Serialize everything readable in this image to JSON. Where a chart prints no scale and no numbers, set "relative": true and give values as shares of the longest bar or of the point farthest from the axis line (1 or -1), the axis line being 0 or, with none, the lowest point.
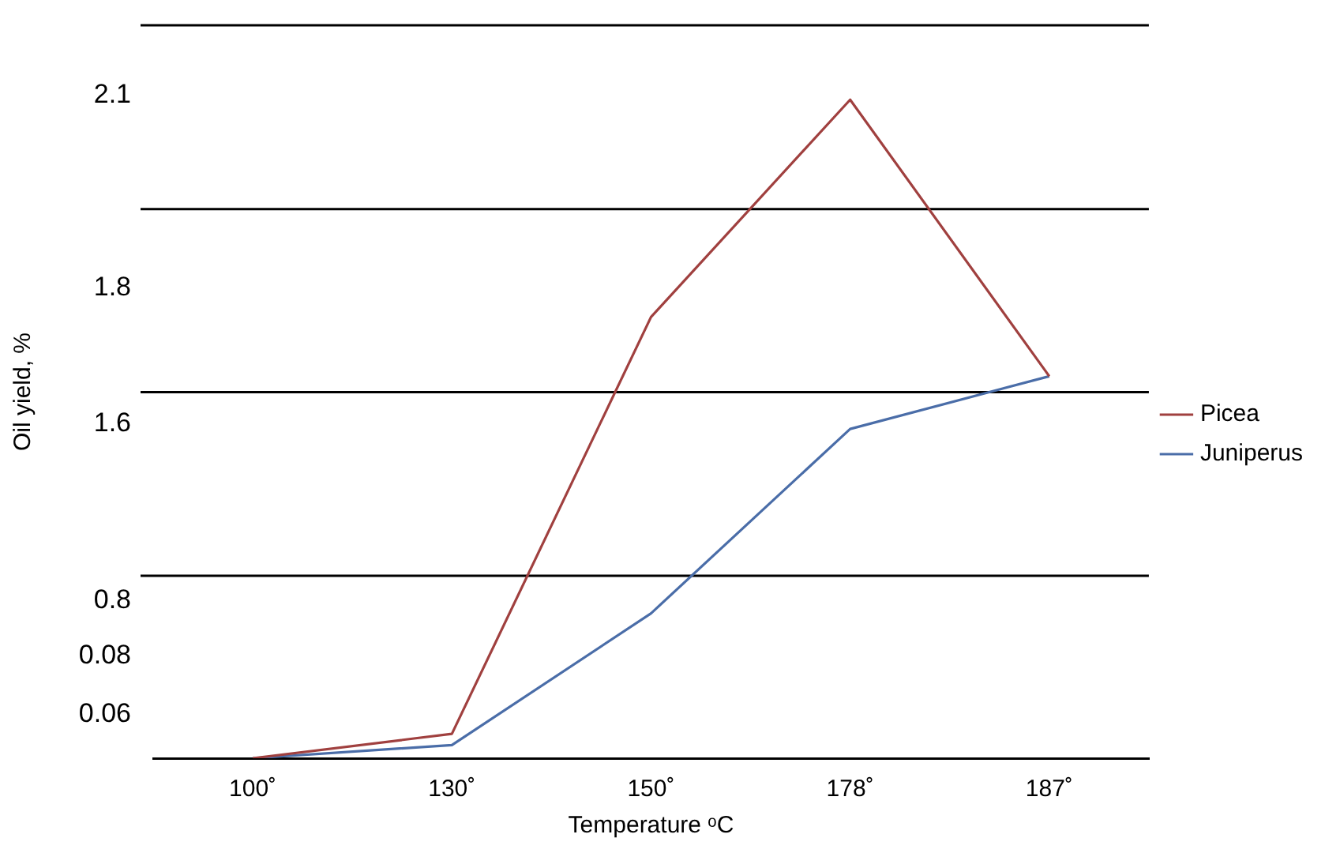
{
  "chart_data": {
    "type": "line",
    "xlabel": "Temperature ᵒC",
    "ylabel": "Oil yield, %",
    "relative": true,
    "categories": [
      "100˚",
      "130˚",
      "150˚",
      "178˚",
      "187˚"
    ],
    "series": [
      {
        "name": "Picea",
        "color": "#a0403f",
        "values": [
          0,
          0.037,
          0.67,
          1,
          0.58
        ]
      },
      {
        "name": "Juniperus",
        "color": "#4a6da8",
        "values": [
          0,
          0.02,
          0.22,
          0.5,
          0.58
        ]
      }
    ],
    "ref_lines": [
      {
        "axis": "y",
        "value": 0.277,
        "color": "#000000"
      },
      {
        "axis": "y",
        "value": 0.556,
        "color": "#000000"
      },
      {
        "axis": "y",
        "value": 0.834,
        "color": "#000000"
      },
      {
        "axis": "y",
        "value": 1.113,
        "color": "#000000"
      }
    ],
    "annotations": [
      "2.1",
      "1.8",
      "1.6",
      "0.8",
      "0.08",
      "0.06"
    ],
    "legend": "right",
    "marker": "none",
    "line_style": "solid"
  }
}
